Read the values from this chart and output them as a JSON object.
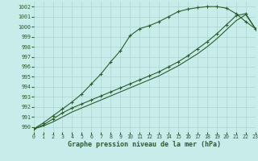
{
  "title": "Graphe pression niveau de la mer (hPa)",
  "bg_color": "#c8ecea",
  "grid_color": "#b0d8d4",
  "line_color": "#2a5e2a",
  "xlim": [
    0,
    23
  ],
  "ylim": [
    989.5,
    1002.5
  ],
  "xticks": [
    0,
    1,
    2,
    3,
    4,
    5,
    6,
    7,
    8,
    9,
    10,
    11,
    12,
    13,
    14,
    15,
    16,
    17,
    18,
    19,
    20,
    21,
    22,
    23
  ],
  "yticks": [
    990,
    991,
    992,
    993,
    994,
    995,
    996,
    997,
    998,
    999,
    1000,
    1001,
    1002
  ],
  "line1_x": [
    0,
    1,
    2,
    3,
    4,
    5,
    6,
    7,
    8,
    9,
    10,
    11,
    12,
    13,
    14,
    15,
    16,
    17,
    18,
    19,
    20,
    21,
    22,
    23
  ],
  "line1_y": [
    989.8,
    990.4,
    991.1,
    991.8,
    992.5,
    993.3,
    994.3,
    995.3,
    996.5,
    997.6,
    999.1,
    999.8,
    1000.1,
    1000.5,
    1001.0,
    1001.5,
    1001.75,
    1001.9,
    1002.0,
    1002.0,
    1001.85,
    1001.3,
    1000.5,
    999.8
  ],
  "line2_x": [
    0,
    1,
    2,
    3,
    4,
    5,
    6,
    7,
    8,
    9,
    10,
    11,
    12,
    13,
    14,
    15,
    16,
    17,
    18,
    19,
    20,
    21,
    22,
    23
  ],
  "line2_y": [
    989.8,
    990.2,
    990.8,
    991.4,
    991.9,
    992.3,
    992.7,
    993.1,
    993.5,
    993.9,
    994.3,
    994.7,
    995.1,
    995.5,
    996.0,
    996.5,
    997.1,
    997.8,
    998.5,
    999.3,
    1000.2,
    1001.1,
    1001.3,
    999.8
  ],
  "line3_x": [
    0,
    1,
    2,
    3,
    4,
    5,
    6,
    7,
    8,
    9,
    10,
    11,
    12,
    13,
    14,
    15,
    16,
    17,
    18,
    19,
    20,
    21,
    22,
    23
  ],
  "line3_y": [
    989.8,
    990.1,
    990.5,
    991.0,
    991.5,
    991.9,
    992.3,
    992.7,
    993.1,
    993.5,
    993.9,
    994.3,
    994.7,
    995.1,
    995.6,
    996.1,
    996.7,
    997.3,
    998.0,
    998.8,
    999.7,
    1000.6,
    1001.2,
    999.8
  ]
}
